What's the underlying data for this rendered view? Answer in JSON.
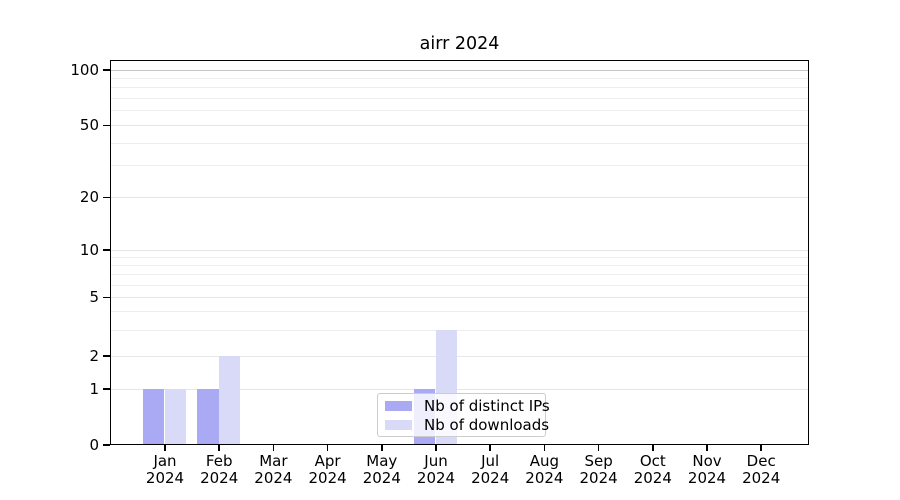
{
  "chart_data": {
    "type": "bar",
    "title": "airr 2024",
    "yscale": "symlog",
    "ylim": [
      0,
      100
    ],
    "yticks": [
      0,
      1,
      2,
      5,
      10,
      20,
      50,
      100
    ],
    "grid": "horizontal major and minor gridlines",
    "legend_position": "lower center",
    "categories": [
      {
        "month": "Jan",
        "year": "2024"
      },
      {
        "month": "Feb",
        "year": "2024"
      },
      {
        "month": "Mar",
        "year": "2024"
      },
      {
        "month": "Apr",
        "year": "2024"
      },
      {
        "month": "May",
        "year": "2024"
      },
      {
        "month": "Jun",
        "year": "2024"
      },
      {
        "month": "Jul",
        "year": "2024"
      },
      {
        "month": "Aug",
        "year": "2024"
      },
      {
        "month": "Sep",
        "year": "2024"
      },
      {
        "month": "Oct",
        "year": "2024"
      },
      {
        "month": "Nov",
        "year": "2024"
      },
      {
        "month": "Dec",
        "year": "2024"
      }
    ],
    "series": [
      {
        "name": "Nb of distinct IPs",
        "color": "#a9a9f4",
        "values": [
          1,
          1,
          0,
          0,
          0,
          1,
          0,
          0,
          0,
          0,
          0,
          0
        ]
      },
      {
        "name": "Nb of downloads",
        "color": "#d9d9f8",
        "values": [
          1,
          2,
          0,
          0,
          0,
          3,
          0,
          0,
          0,
          0,
          0,
          0
        ]
      }
    ],
    "colors": {
      "axis": "#000000",
      "text": "#000000",
      "grid_minor": "#ededed",
      "grid_major": "#e7e7e7",
      "grid_top": "#c6c6c6",
      "background": "#ffffff"
    }
  }
}
